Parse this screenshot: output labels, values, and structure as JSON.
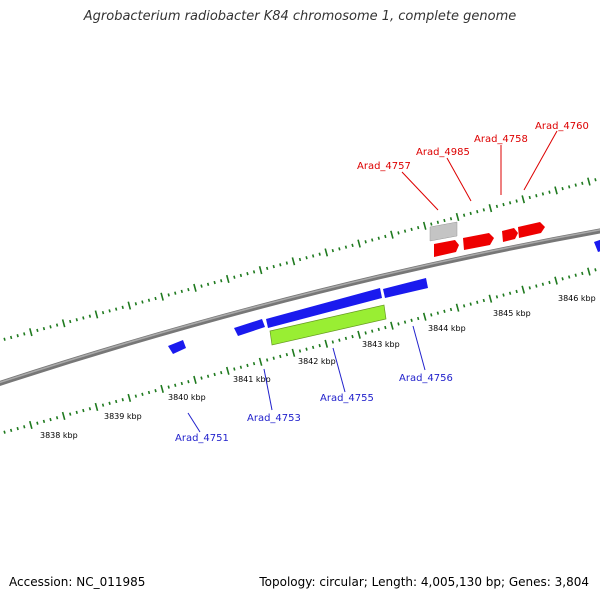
{
  "title": "Agrobacterium radiobacter K84 chromosome 1, complete genome",
  "footer": {
    "accession": "Accession: NC_011985",
    "stats": "Topology: circular; Length: 4,005,130 bp; Genes: 3,804"
  },
  "colors": {
    "backbone": "#8a8a8a",
    "ticks": "#1f7a1f",
    "forward_gene": "#ee0000",
    "reverse_gene": "#1a1aee",
    "gray_feature": "#bbbbbb",
    "green_feature": "#99ee33",
    "forward_label": "#dd0000",
    "reverse_label": "#2222cc"
  },
  "scale_labels": [
    "3838 kbp",
    "3839 kbp",
    "3840 kbp",
    "3841 kbp",
    "3842 kbp",
    "3843 kbp",
    "3844 kbp",
    "3845 kbp",
    "3846 kbp"
  ],
  "forward_genes": [
    {
      "name": "Arad_4757"
    },
    {
      "name": "Arad_4985"
    },
    {
      "name": "Arad_4758"
    },
    {
      "name": "Arad_4760"
    }
  ],
  "reverse_genes": [
    {
      "name": "Arad_4751"
    },
    {
      "name": "Arad_4753"
    },
    {
      "name": "Arad_4755"
    },
    {
      "name": "Arad_4756"
    }
  ]
}
